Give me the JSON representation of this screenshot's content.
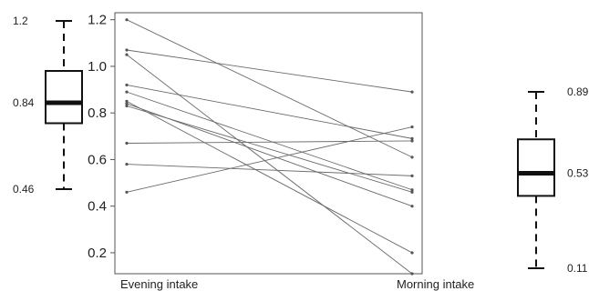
{
  "chart_data": {
    "type": "line",
    "title": "",
    "xlabel": "",
    "ylabel": "",
    "categories": [
      "Evening intake",
      "Morning intake"
    ],
    "ylim": [
      0.11,
      1.23
    ],
    "yticks": [
      "0.2",
      "0.4",
      "0.6",
      "0.8",
      "1.0",
      "1.2"
    ],
    "grid": false,
    "pairs": [
      [
        1.2,
        0.61
      ],
      [
        1.07,
        0.89
      ],
      [
        1.05,
        0.11
      ],
      [
        0.92,
        0.69
      ],
      [
        0.89,
        0.47
      ],
      [
        0.85,
        0.2
      ],
      [
        0.84,
        0.4
      ],
      [
        0.83,
        0.46
      ],
      [
        0.67,
        0.68
      ],
      [
        0.58,
        0.53
      ],
      [
        0.46,
        0.74
      ]
    ],
    "boxplots": [
      {
        "side": "left",
        "min": 0.46,
        "q1": 0.75,
        "median": 0.84,
        "q3": 0.98,
        "max": 1.2,
        "labels": [
          "1.2",
          "0.84",
          "0.46"
        ]
      },
      {
        "side": "right",
        "min": 0.11,
        "q1": 0.43,
        "median": 0.53,
        "q3": 0.68,
        "max": 0.89,
        "labels": [
          "0.89",
          "0.53",
          "0.11"
        ]
      }
    ],
    "colors": {
      "line": "#6b6b6b",
      "point": "#555555",
      "frame": "#555555",
      "box": "#111111"
    }
  }
}
